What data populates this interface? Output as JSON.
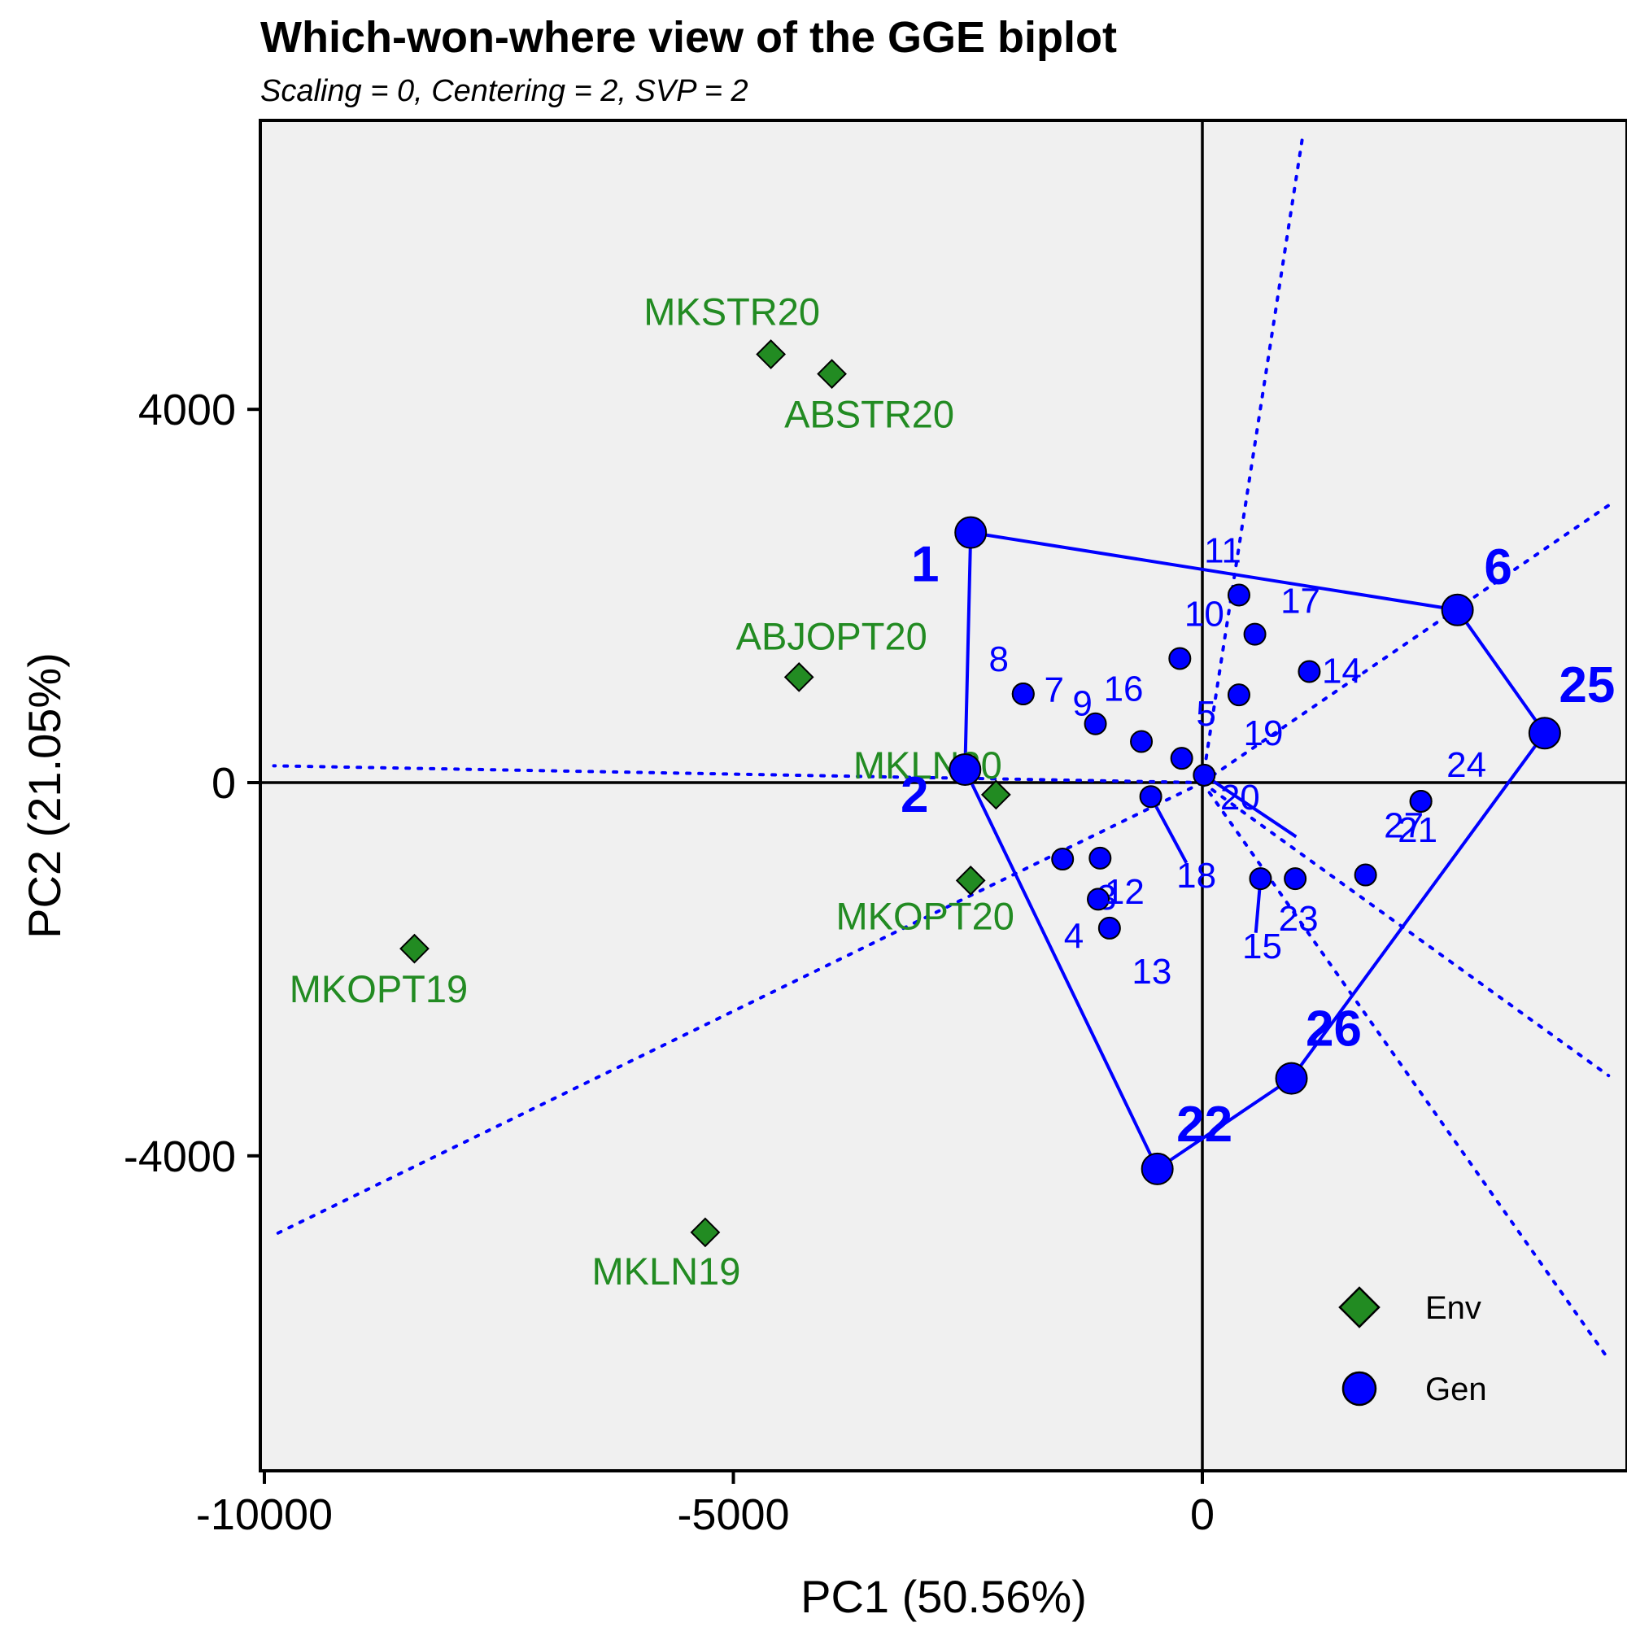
{
  "chart_data": {
    "type": "scatter",
    "title": "Which-won-where view of the GGE biplot",
    "subtitle": "Scaling = 0, Centering = 2, SVP = 2",
    "xlabel": "PC1 (50.56%)",
    "ylabel": "PC2 (21.05%)",
    "xlim": [
      -10100,
      4400
    ],
    "ylim": [
      -7350,
      7100
    ],
    "xticks": [
      -10000,
      -5000,
      0
    ],
    "yticks": [
      -4000,
      0,
      4000
    ],
    "tick_labels": {
      "x": [
        "-10000",
        "-5000",
        "0"
      ],
      "y": [
        "-4000",
        "0",
        "4000"
      ]
    },
    "grid": false,
    "legend_position": "bottom-right",
    "colors": {
      "env": "#228B22",
      "gen": "#0000FF",
      "panel": "#F0F0F0"
    },
    "series": [
      {
        "name": "Env",
        "marker": "diamond",
        "points": [
          {
            "label": "MKSTR20",
            "x": -4600,
            "y": 4590
          },
          {
            "label": "ABSTR20",
            "x": -3950,
            "y": 4380
          },
          {
            "label": "ABJOPT20",
            "x": -4300,
            "y": 1130
          },
          {
            "label": "MKLN20",
            "x": -2200,
            "y": -130
          },
          {
            "label": "MKOPT20",
            "x": -2470,
            "y": -1050
          },
          {
            "label": "MKOPT19",
            "x": -8400,
            "y": -1780
          },
          {
            "label": "MKLN19",
            "x": -5300,
            "y": -4820
          }
        ]
      },
      {
        "name": "Gen",
        "marker": "circle",
        "points": [
          {
            "label": "1",
            "x": -2470,
            "y": 2680,
            "vertex": true
          },
          {
            "label": "2",
            "x": -2530,
            "y": 140,
            "vertex": true
          },
          {
            "label": "3",
            "x": -1490,
            "y": -820
          },
          {
            "label": "4",
            "x": -1110,
            "y": -1250
          },
          {
            "label": "5",
            "x": -220,
            "y": 260
          },
          {
            "label": "6",
            "x": 2720,
            "y": 1850,
            "vertex": true
          },
          {
            "label": "7",
            "x": -1910,
            "y": 950
          },
          {
            "label": "8",
            "x": -1910,
            "y": 950
          },
          {
            "label": "9",
            "x": -1140,
            "y": 630
          },
          {
            "label": "10",
            "x": -240,
            "y": 1330
          },
          {
            "label": "11",
            "x": 390,
            "y": 2010
          },
          {
            "label": "12",
            "x": -1090,
            "y": -810
          },
          {
            "label": "13",
            "x": -990,
            "y": -1560
          },
          {
            "label": "14",
            "x": 1140,
            "y": 1190
          },
          {
            "label": "15",
            "x": 620,
            "y": -1030
          },
          {
            "label": "16",
            "x": -650,
            "y": 440
          },
          {
            "label": "17",
            "x": 560,
            "y": 1590
          },
          {
            "label": "18",
            "x": -550,
            "y": -150
          },
          {
            "label": "19",
            "x": 390,
            "y": 940
          },
          {
            "label": "20",
            "x": 20,
            "y": 80
          },
          {
            "label": "21",
            "x": 2330,
            "y": -200
          },
          {
            "label": "22",
            "x": -480,
            "y": -4140,
            "vertex": true
          },
          {
            "label": "23",
            "x": 990,
            "y": -1030
          },
          {
            "label": "24",
            "x": 2330,
            "y": -200
          },
          {
            "label": "25",
            "x": 3650,
            "y": 530,
            "vertex": true
          },
          {
            "label": "26",
            "x": 950,
            "y": -3170,
            "vertex": true
          },
          {
            "label": "27",
            "x": 1740,
            "y": -990
          }
        ]
      }
    ],
    "hull_order": [
      "1",
      "6",
      "25",
      "26",
      "22",
      "2"
    ],
    "sector_lines": [
      {
        "from": [
          0,
          0
        ],
        "to": [
          -9900,
          180
        ]
      },
      {
        "from": [
          0,
          0
        ],
        "to": [
          -9900,
          -4850
        ]
      },
      {
        "from": [
          0,
          0
        ],
        "to": [
          4330,
          2970
        ]
      },
      {
        "from": [
          0,
          0
        ],
        "to": [
          1070,
          6930
        ]
      },
      {
        "from": [
          0,
          0
        ],
        "to": [
          4330,
          -3140
        ]
      },
      {
        "from": [
          0,
          0
        ],
        "to": [
          4330,
          -6180
        ]
      }
    ],
    "perpendiculars": [
      {
        "from": [
          -550,
          -150
        ],
        "to": [
          -170,
          -860
        ]
      },
      {
        "from": [
          620,
          -1030
        ],
        "to": [
          570,
          -1610
        ]
      },
      {
        "from": [
          20,
          80
        ],
        "to": [
          1000,
          -580
        ]
      }
    ],
    "legend": {
      "env": "Env",
      "gen": "Gen"
    }
  }
}
